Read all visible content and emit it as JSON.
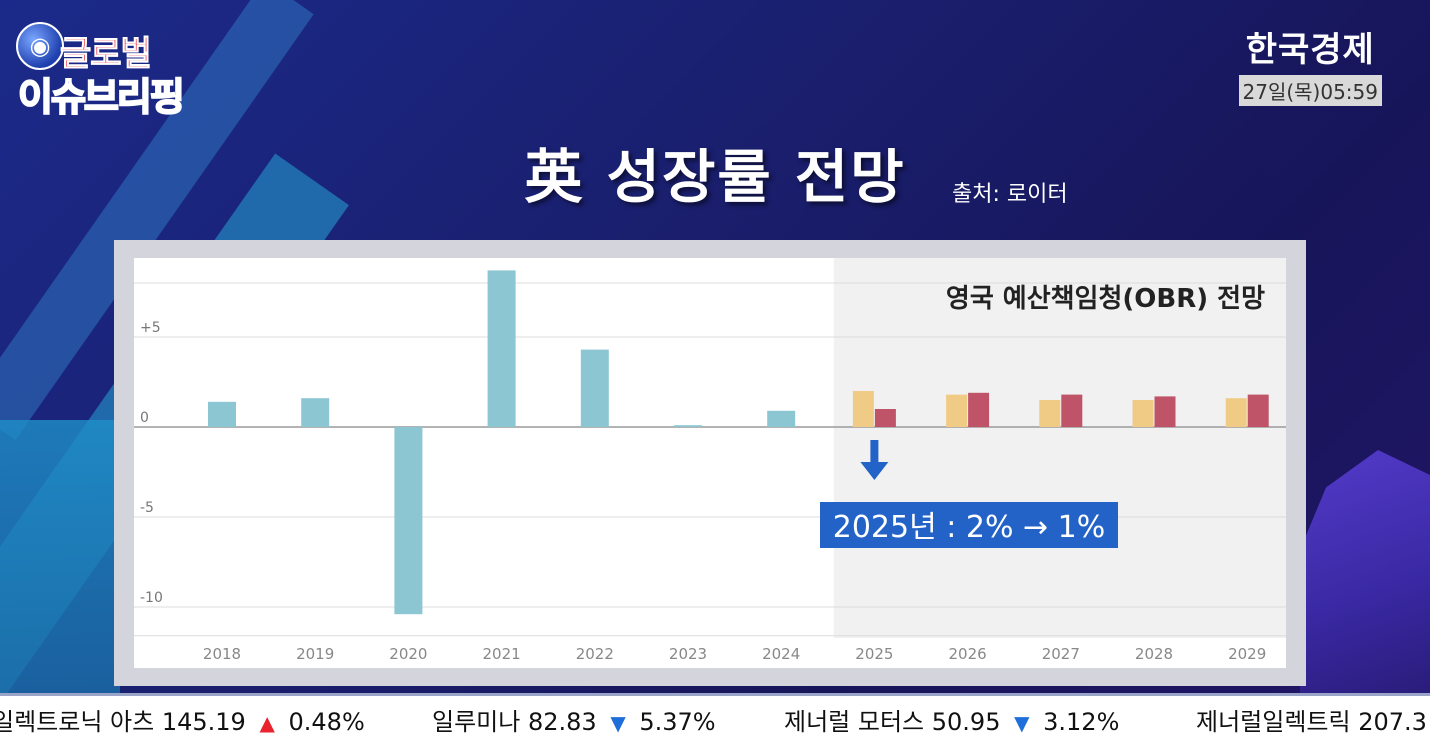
{
  "logo": {
    "line1": "글로벌",
    "line2": "이슈브리핑"
  },
  "brand": {
    "name": "한국경제",
    "time": "27일(목)05:59"
  },
  "headline": {
    "title": "英 성장률 전망",
    "source": "출처: 로이터"
  },
  "chart_data": {
    "type": "bar",
    "title": "영국 예산책임청(OBR) 전망",
    "categories": [
      "2018",
      "2019",
      "2020",
      "2021",
      "2022",
      "2023",
      "2024",
      "2025",
      "2026",
      "2027",
      "2028",
      "2029"
    ],
    "ylim": [
      -11,
      9
    ],
    "yticks": [
      {
        "value": 5,
        "label": "+5"
      },
      {
        "value": 0,
        "label": "0"
      },
      {
        "value": -5,
        "label": "-5"
      },
      {
        "value": -10,
        "label": "-10"
      }
    ],
    "grid": true,
    "shaded_from": "2025",
    "series": [
      {
        "values": [
          1.4,
          1.6,
          -10.4,
          8.7,
          4.3,
          0.1,
          0.9,
          null,
          null,
          null,
          null,
          null
        ]
      },
      {
        "values": [
          null,
          null,
          null,
          null,
          null,
          null,
          null,
          2.0,
          1.8,
          1.5,
          1.5,
          1.6
        ]
      },
      {
        "values": [
          null,
          null,
          null,
          null,
          null,
          null,
          null,
          1.0,
          1.9,
          1.8,
          1.7,
          1.8
        ]
      }
    ],
    "colors": [
      "#8bc6d2",
      "#efcb86",
      "#bf5468"
    ],
    "annotation": {
      "text": "2025년 : 2% → 1%",
      "category": "2025",
      "bg": "#2363c7"
    }
  },
  "ticker": [
    {
      "name": "일렉트로닉 아츠",
      "price": "145.19",
      "dir": "up",
      "change": "0.48%"
    },
    {
      "name": "일루미나",
      "price": "82.83",
      "dir": "down",
      "change": "5.37%"
    },
    {
      "name": "제너럴 모터스",
      "price": "50.95",
      "dir": "down",
      "change": "3.12%"
    },
    {
      "name": "제너럴일렉트릭",
      "price": "207.3",
      "dir": "",
      "change": ""
    }
  ]
}
